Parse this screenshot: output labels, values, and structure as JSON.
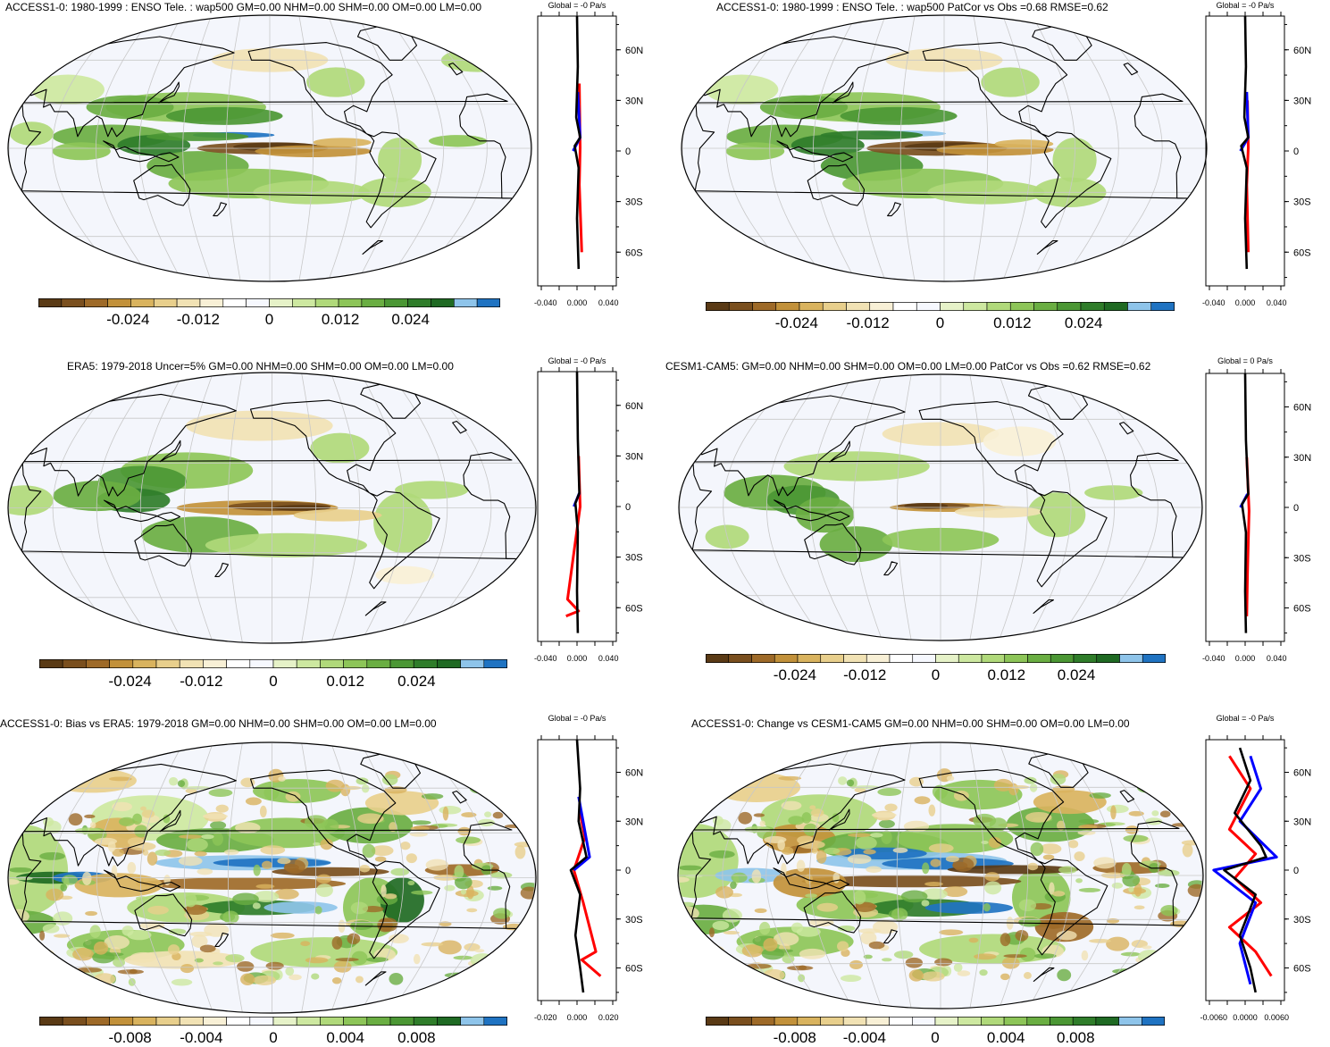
{
  "chart_data": [
    {
      "type": "heatmap",
      "panel": "top-left",
      "title": "ACCESS1-0: 1980-1999 : ENSO Tele. : wap500 GM=0.00 NHM=0.00 SHM=0.00 OM=0.00 LM=0.00",
      "profile_title": "Global = -0 Pa/s",
      "colorbar_ticks": [
        "-0.024",
        "-0.012",
        "0",
        "0.012",
        "0.024"
      ],
      "profile_xticks": [
        "-0.040",
        "0.000",
        "0.040"
      ],
      "profile_yticks": [
        "60N",
        "30N",
        "0",
        "30S",
        "60S"
      ],
      "profile_lines": {
        "black": [
          [
            0,
            80
          ],
          [
            0.001,
            50
          ],
          [
            -0.001,
            20
          ],
          [
            0.004,
            8
          ],
          [
            -0.003,
            3
          ],
          [
            0.002,
            -10
          ],
          [
            0,
            -40
          ],
          [
            0.002,
            -70
          ]
        ],
        "red": [
          [
            0.003,
            40
          ],
          [
            0.004,
            2
          ],
          [
            0.003,
            -20
          ],
          [
            0.006,
            -60
          ]
        ],
        "blue": [
          [
            -0.005,
            0
          ],
          [
            0.004,
            8
          ],
          [
            0.001,
            35
          ]
        ]
      }
    },
    {
      "type": "heatmap",
      "panel": "top-right",
      "title": "ACCESS1-0: 1980-1999 : ENSO Tele. : wap500 PatCor vs Obs =0.68 RMSE=0.62",
      "profile_title": "Global = -0 Pa/s",
      "colorbar_ticks": [
        "-0.024",
        "-0.012",
        "0",
        "0.012",
        "0.024"
      ],
      "profile_xticks": [
        "-0.040",
        "0.000",
        "0.040"
      ],
      "profile_yticks": [
        "60N",
        "30N",
        "0",
        "30S",
        "60S"
      ],
      "profile_lines": {
        "black": [
          [
            0,
            80
          ],
          [
            0.001,
            50
          ],
          [
            -0.001,
            20
          ],
          [
            0.004,
            8
          ],
          [
            -0.005,
            3
          ],
          [
            0.002,
            -10
          ],
          [
            0,
            -40
          ],
          [
            0.002,
            -70
          ]
        ],
        "red": [
          [
            0.003,
            30
          ],
          [
            0.004,
            2
          ],
          [
            0.002,
            -20
          ],
          [
            0.004,
            -60
          ]
        ],
        "blue": [
          [
            -0.006,
            0
          ],
          [
            0.004,
            8
          ],
          [
            0.002,
            35
          ]
        ]
      }
    },
    {
      "type": "heatmap",
      "panel": "middle-left",
      "title": "ERA5: 1979-2018 Uncer=5% GM=0.00 NHM=0.00 SHM=0.00 OM=0.00 LM=0.00",
      "profile_title": "Global = -0 Pa/s",
      "colorbar_ticks": [
        "-0.024",
        "-0.012",
        "0",
        "0.012",
        "0.024"
      ],
      "profile_xticks": [
        "-0.040",
        "0.000",
        "0.040"
      ],
      "profile_yticks": [
        "60N",
        "30N",
        "0",
        "30S",
        "60S"
      ],
      "profile_lines": {
        "black": [
          [
            0,
            80
          ],
          [
            0.001,
            40
          ],
          [
            0.003,
            8
          ],
          [
            -0.002,
            2
          ],
          [
            0.001,
            -15
          ],
          [
            0,
            -50
          ],
          [
            0.001,
            -75
          ]
        ],
        "red": [
          [
            0.002,
            30
          ],
          [
            0.004,
            0
          ],
          [
            -0.012,
            -55
          ],
          [
            0.002,
            -62
          ],
          [
            -0.014,
            -65
          ]
        ],
        "blue": [
          [
            -0.004,
            0
          ],
          [
            0.003,
            8
          ]
        ]
      }
    },
    {
      "type": "heatmap",
      "panel": "middle-right",
      "title": "CESM1-CAM5: GM=0.00 NHM=0.00 SHM=0.00 OM=0.00 LM=0.00 PatCor vs Obs =0.62 RMSE=0.62",
      "profile_title": "Global = 0 Pa/s",
      "colorbar_ticks": [
        "-0.024",
        "-0.012",
        "0",
        "0.012",
        "0.024"
      ],
      "profile_xticks": [
        "-0.040",
        "0.000",
        "0.040"
      ],
      "profile_yticks": [
        "60N",
        "30N",
        "0",
        "30S",
        "60S"
      ],
      "profile_lines": {
        "black": [
          [
            0,
            80
          ],
          [
            0.001,
            40
          ],
          [
            0.004,
            8
          ],
          [
            -0.004,
            2
          ],
          [
            0.001,
            -15
          ],
          [
            0,
            -50
          ],
          [
            0.001,
            -75
          ]
        ],
        "red": [
          [
            0.002,
            30
          ],
          [
            0.005,
            -2
          ],
          [
            0.003,
            -40
          ],
          [
            0.002,
            -65
          ]
        ],
        "blue": [
          [
            -0.006,
            0
          ],
          [
            0.003,
            8
          ]
        ]
      }
    },
    {
      "type": "heatmap",
      "panel": "bottom-left",
      "title": "ACCESS1-0: Bias vs ERA5: 1979-2018 GM=0.00 NHM=0.00 SHM=0.00 OM=0.00 LM=0.00",
      "profile_title": "Global = -0 Pa/s",
      "colorbar_ticks": [
        "-0.008",
        "-0.004",
        "0",
        "0.004",
        "0.008"
      ],
      "profile_xticks": [
        "-0.020",
        "0.000",
        "0.020"
      ],
      "profile_yticks": [
        "60N",
        "30N",
        "0",
        "30S",
        "60S"
      ],
      "profile_lines": {
        "black": [
          [
            0,
            80
          ],
          [
            0.002,
            50
          ],
          [
            0.001,
            30
          ],
          [
            0.006,
            8
          ],
          [
            -0.004,
            0
          ],
          [
            0.002,
            -15
          ],
          [
            -0.001,
            -40
          ],
          [
            0.002,
            -60
          ],
          [
            0.004,
            -75
          ]
        ],
        "red": [
          [
            0.002,
            35
          ],
          [
            0.005,
            20
          ],
          [
            -0.002,
            0
          ],
          [
            0.004,
            -20
          ],
          [
            0.012,
            -50
          ],
          [
            0.003,
            -55
          ],
          [
            0.015,
            -65
          ]
        ],
        "blue": [
          [
            0.001,
            45
          ],
          [
            0.008,
            8
          ],
          [
            -0.002,
            0
          ]
        ]
      }
    },
    {
      "type": "heatmap",
      "panel": "bottom-right",
      "title": "ACCESS1-0: Change vs CESM1-CAM5 GM=0.00 NHM=0.00 SHM=0.00 OM=0.00 LM=0.00",
      "profile_title": "Global = -0 Pa/s",
      "colorbar_ticks": [
        "-0.008",
        "-0.004",
        "0",
        "0.004",
        "0.008"
      ],
      "profile_xticks": [
        "-0.0060",
        "0.0000",
        "0.0060"
      ],
      "profile_yticks": [
        "60N",
        "30N",
        "0",
        "30S",
        "60S"
      ],
      "profile_lines": {
        "black": [
          [
            -0.001,
            75
          ],
          [
            0.001,
            55
          ],
          [
            -0.002,
            35
          ],
          [
            0.003,
            15
          ],
          [
            0.004,
            8
          ],
          [
            -0.004,
            0
          ],
          [
            0.002,
            -15
          ],
          [
            -0.001,
            -40
          ],
          [
            0.001,
            -60
          ],
          [
            0.002,
            -75
          ]
        ],
        "red": [
          [
            -0.003,
            70
          ],
          [
            0.001,
            50
          ],
          [
            -0.003,
            25
          ],
          [
            0.002,
            10
          ],
          [
            -0.002,
            -5
          ],
          [
            0.003,
            -20
          ],
          [
            -0.003,
            -35
          ],
          [
            0.002,
            -50
          ],
          [
            0.005,
            -65
          ]
        ],
        "blue": [
          [
            0.001,
            70
          ],
          [
            0.003,
            50
          ],
          [
            -0.001,
            30
          ],
          [
            0.006,
            8
          ],
          [
            -0.006,
            0
          ],
          [
            0.002,
            -20
          ],
          [
            -0.001,
            -45
          ],
          [
            0.001,
            -70
          ]
        ]
      }
    }
  ],
  "colors": {
    "scale": [
      "#5a3a15",
      "#7a4f1e",
      "#9e6a28",
      "#c2913a",
      "#d9b35e",
      "#e8cf8c",
      "#f1e2b4",
      "#f8f0d6",
      "#ffffff",
      "#f6f8fe",
      "#e6f2c8",
      "#cde8a0",
      "#b0d97a",
      "#8dc558",
      "#6aae42",
      "#4b9734",
      "#2f7d2a",
      "#1f6a23",
      "#8ec4ea",
      "#1f73c2"
    ],
    "ocean": "#f4f6fc",
    "coast": "#000000",
    "red": "#ff0000",
    "blue": "#0000ff",
    "black": "#000000"
  }
}
